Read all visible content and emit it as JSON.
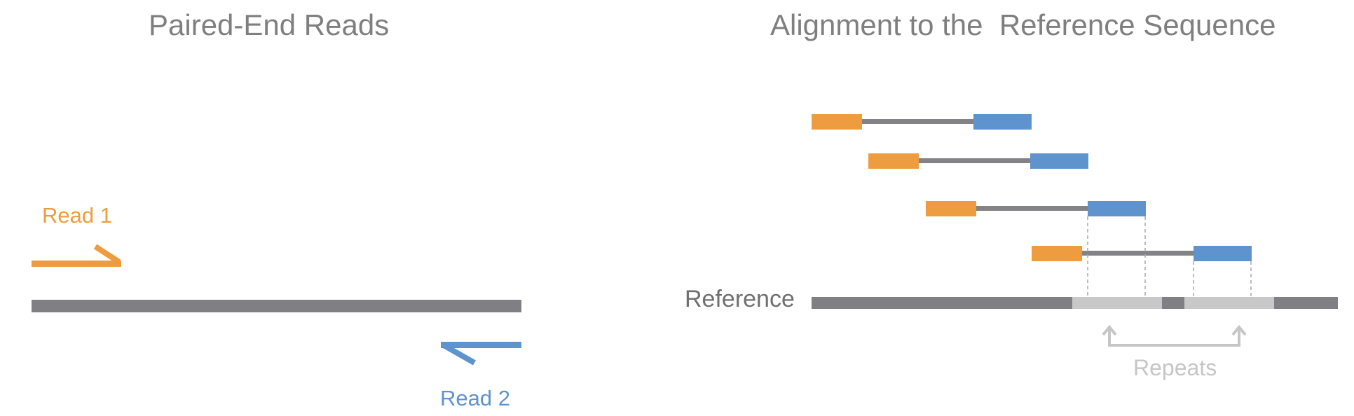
{
  "colors": {
    "read1": "#ED9D3F",
    "read2": "#5F93CD",
    "sequence": "#808084",
    "insert": "#838387",
    "repeat": "#C8C8C8",
    "repeat_label": "#C6C6C6",
    "title": "#7F7F7F"
  },
  "left_panel": {
    "title": "Paired-End Reads",
    "read1_label": "Read 1",
    "read2_label": "Read 2"
  },
  "right_panel": {
    "title": "Alignment to the  Reference Sequence",
    "reference_label": "Reference",
    "repeats_label": "Repeats",
    "read_pairs_count": 4
  }
}
